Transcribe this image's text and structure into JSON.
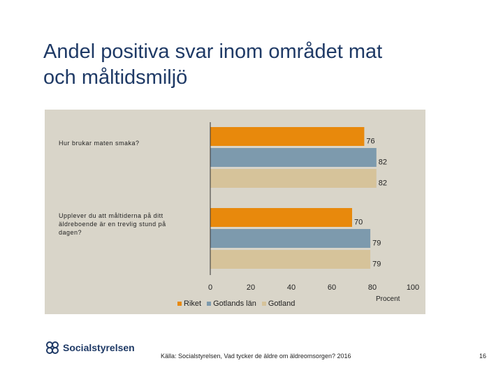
{
  "slide": {
    "title_line1": "Andel positiva svar inom området mat",
    "title_line2": "och måltidsmiljö"
  },
  "chart_data": {
    "type": "bar",
    "orientation": "horizontal",
    "categories": [
      "Hur brukar maten smaka?",
      "Upplever du att måltiderna på ditt äldreboende är en trevlig stund på dagen?"
    ],
    "series": [
      {
        "name": "Riket",
        "color": "#e8890c",
        "values": [
          76,
          70
        ]
      },
      {
        "name": "Gotlands län",
        "color": "#7d9aad",
        "values": [
          82,
          79
        ]
      },
      {
        "name": "Gotland",
        "color": "#d6c39a",
        "values": [
          82,
          79
        ]
      }
    ],
    "xlim": [
      0,
      100
    ],
    "ticks": [
      0,
      20,
      40,
      60,
      80,
      100
    ],
    "xlabel": "Procent",
    "grid": false,
    "legend_position": "bottom"
  },
  "footer": {
    "logo_text": "Socialstyrelsen",
    "source": "Källa: Socialstyrelsen, Vad tycker de äldre om äldreomsorgen? 2016",
    "page_number": "16"
  }
}
